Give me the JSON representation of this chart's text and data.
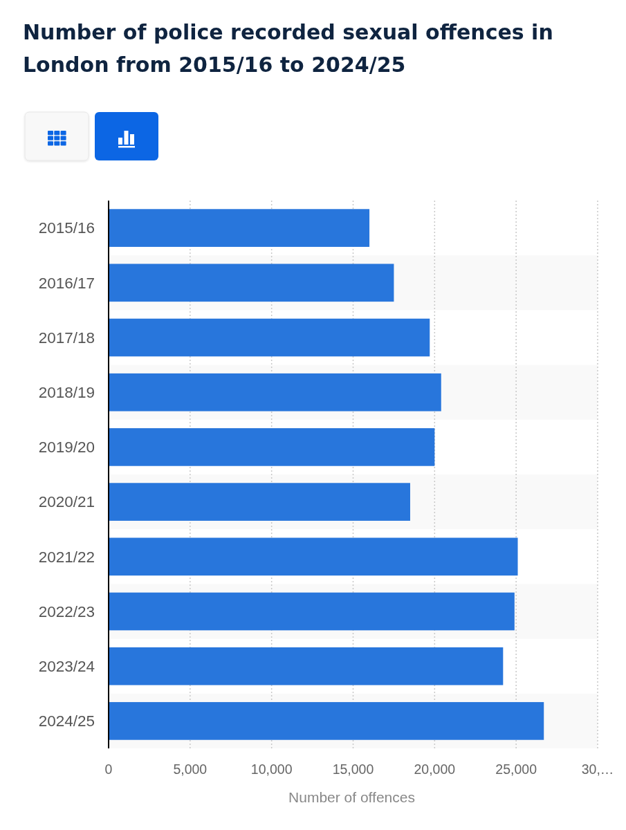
{
  "chart_data": {
    "type": "bar",
    "orientation": "horizontal",
    "title": "Number of police recorded sexual offences in London from 2015/16 to 2024/25",
    "xlabel": "Number of offences",
    "categories": [
      "2015/16",
      "2016/17",
      "2017/18",
      "2018/19",
      "2019/20",
      "2020/21",
      "2021/22",
      "2022/23",
      "2023/24",
      "2024/25"
    ],
    "values": [
      16000,
      17500,
      19700,
      20400,
      20000,
      18500,
      25100,
      24900,
      24200,
      26700
    ],
    "color": "#2876dc",
    "xlim": [
      0,
      30000
    ],
    "xticks": [
      0,
      {
        "value": 5000,
        "label": "5,000"
      },
      {
        "value": 10000,
        "label": "10,000"
      },
      {
        "value": 15000,
        "label": "15,000"
      },
      {
        "value": 20000,
        "label": "20,000"
      },
      {
        "value": 25000,
        "label": "25,000"
      },
      {
        "value": 30000,
        "label": "30,…"
      }
    ],
    "grid": "x"
  }
}
